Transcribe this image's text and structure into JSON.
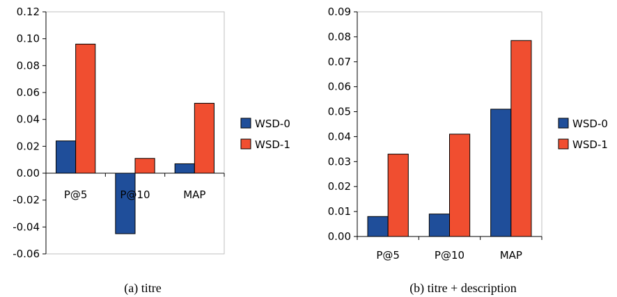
{
  "colors": {
    "series": [
      "#1f4e9a",
      "#f04e30"
    ],
    "axis": "#000000",
    "plot_border": "#bfbfbf",
    "bar_stroke": "#000000"
  },
  "chart_data": [
    {
      "type": "bar",
      "caption": "(a) titre",
      "categories": [
        "P@5",
        "P@10",
        "MAP"
      ],
      "series": [
        {
          "name": "WSD-0",
          "values": [
            0.024,
            -0.045,
            0.007
          ]
        },
        {
          "name": "WSD-1",
          "values": [
            0.096,
            0.011,
            0.052
          ]
        }
      ],
      "ylim": [
        -0.06,
        0.12
      ],
      "yticks": [
        "0.12",
        "0.10",
        "0.08",
        "0.06",
        "0.04",
        "0.02",
        "0.00",
        "-0.02",
        "-0.04",
        "-0.06"
      ],
      "legend": "right",
      "grid": false
    },
    {
      "type": "bar",
      "caption": "(b) titre + description",
      "categories": [
        "P@5",
        "P@10",
        "MAP"
      ],
      "series": [
        {
          "name": "WSD-0",
          "values": [
            0.008,
            0.009,
            0.051
          ]
        },
        {
          "name": "WSD-1",
          "values": [
            0.033,
            0.041,
            0.0785
          ]
        }
      ],
      "ylim": [
        0.0,
        0.09
      ],
      "yticks": [
        "0.09",
        "0.08",
        "0.07",
        "0.06",
        "0.05",
        "0.04",
        "0.03",
        "0.02",
        "0.01",
        "0.00"
      ],
      "legend": "right",
      "grid": false
    }
  ]
}
